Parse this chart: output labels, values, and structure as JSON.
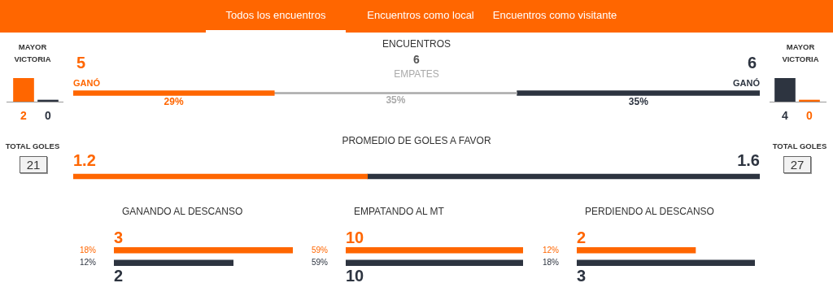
{
  "chart_data": [
    {
      "type": "other",
      "annotations": [
        "Todos los encuentros",
        "Encuentros como local",
        "Encuentros como visitante"
      ]
    },
    {
      "type": "bar",
      "title": "MAYOR VICTORIA",
      "categories": [
        null,
        null
      ],
      "values": [
        2,
        0
      ],
      "colors": [
        "#ff6600",
        "#2d3440"
      ],
      "data_labels": true,
      "tick_labels": false
    },
    {
      "type": "bar",
      "orientation": "horizontal",
      "stacked": true,
      "title": "ENCUENTROS",
      "categories": [
        null
      ],
      "tick_labels": false,
      "annotations": [
        "5",
        "6",
        "6"
      ],
      "series": [
        {
          "name": "GANÓ",
          "color": "#ff6600",
          "values": [
            29
          ],
          "value_labels": [
            "29%"
          ]
        },
        {
          "name": "EMPATES",
          "color": "#aaaaaa",
          "values": [
            35
          ],
          "value_labels": [
            "35%"
          ]
        },
        {
          "name": "GANÓ",
          "color": "#2d3440",
          "values": [
            35
          ],
          "value_labels": [
            "35%"
          ]
        }
      ]
    },
    {
      "type": "bar",
      "title": "MAYOR VICTORIA",
      "categories": [
        null,
        null
      ],
      "values": [
        4,
        0
      ],
      "colors": [
        "#2d3440",
        "#ff6600"
      ],
      "data_labels": true,
      "tick_labels": false
    },
    {
      "type": "bar",
      "orientation": "horizontal",
      "stacked": true,
      "title": "PROMEDIO DE GOLES A FAVOR",
      "categories": [
        null
      ],
      "tick_labels": false,
      "data_labels": true,
      "annotations": [
        "TOTAL GOLES",
        "21",
        "TOTAL GOLES",
        "27"
      ],
      "series": [
        {
          "color": "#ff6600",
          "values": [
            1.2
          ]
        },
        {
          "color": "#2d3440",
          "values": [
            1.6
          ]
        }
      ]
    },
    {
      "type": "bar",
      "orientation": "horizontal",
      "title": "GANANDO AL DESCANSO",
      "categories": [
        "18%",
        "12%"
      ],
      "values": [
        3,
        2
      ],
      "colors": [
        "#ff6600",
        "#2d3440"
      ],
      "data_labels": true,
      "tick_labels": "y"
    },
    {
      "type": "bar",
      "orientation": "horizontal",
      "title": "EMPATANDO AL MT",
      "categories": [
        "59%",
        "59%"
      ],
      "values": [
        10,
        10
      ],
      "colors": [
        "#ff6600",
        "#2d3440"
      ],
      "data_labels": true,
      "tick_labels": "y"
    },
    {
      "type": "bar",
      "orientation": "horizontal",
      "title": "PERDIENDO AL DESCANSO",
      "categories": [
        "12%",
        "18%"
      ],
      "values": [
        2,
        3
      ],
      "colors": [
        "#ff6600",
        "#2d3440"
      ],
      "data_labels": true,
      "tick_labels": "y"
    }
  ]
}
